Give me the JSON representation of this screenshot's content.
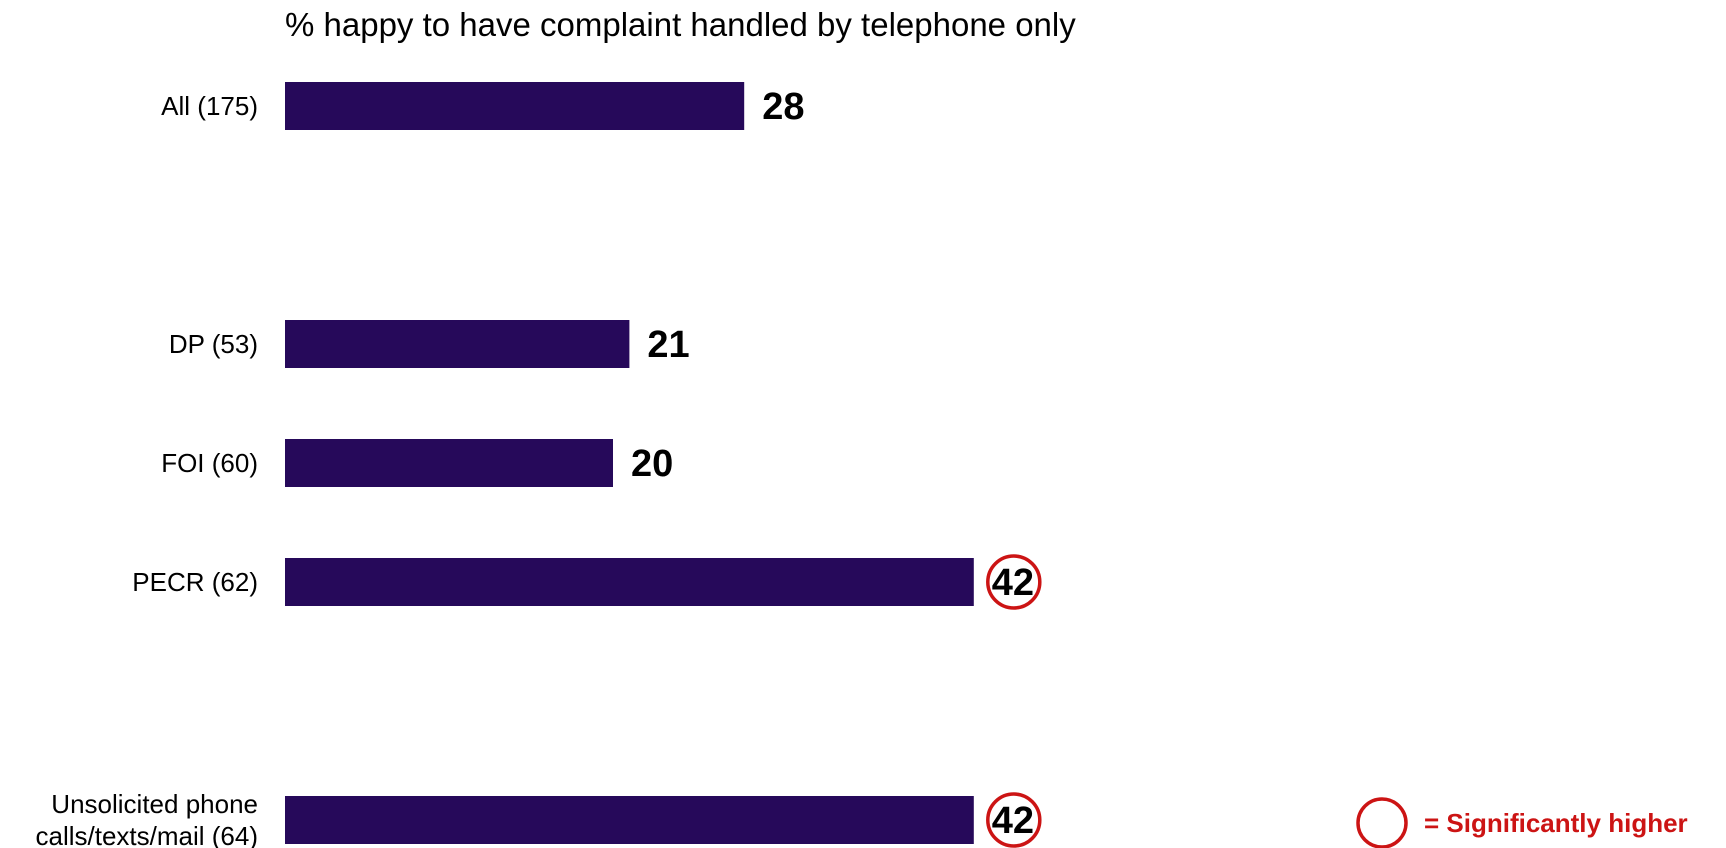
{
  "chart_data": {
    "type": "bar",
    "orientation": "horizontal",
    "title": "% happy to have complaint handled by telephone only",
    "categories": [
      [
        "All (175)"
      ],
      [
        "DP (53)"
      ],
      [
        "FOI (60)"
      ],
      [
        "PECR (62)"
      ],
      [
        "Unsolicited phone",
        "calls/texts/mail (64)"
      ]
    ],
    "values": [
      28,
      21,
      20,
      42,
      42
    ],
    "significantly_higher": [
      false,
      false,
      false,
      true,
      true
    ],
    "xlim": [
      0,
      100
    ],
    "grid": false,
    "legend": {
      "text": "= Significantly higher",
      "placement": "bottom-right"
    },
    "colors": {
      "bar": "#26095a",
      "highlight": "#cc1414",
      "legend_text": "#cc1414"
    }
  }
}
